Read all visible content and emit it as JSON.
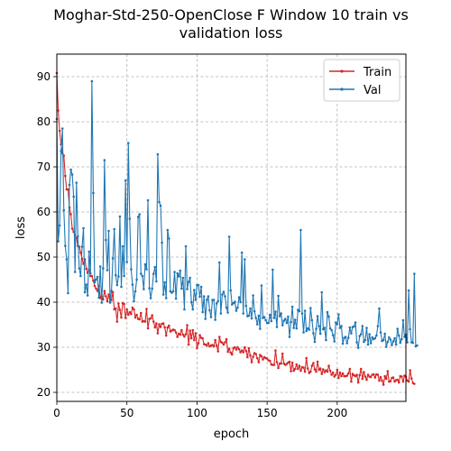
{
  "chart_data": {
    "type": "line",
    "title_line1": "Moghar-Std-250-OpenClose F Window 10 train vs",
    "title_line2": "validation loss",
    "xlabel": "epoch",
    "ylabel": "loss",
    "xlim": [
      0,
      249
    ],
    "ylim": [
      18,
      95
    ],
    "xticks": [
      0,
      50,
      100,
      150,
      200
    ],
    "yticks": [
      20,
      30,
      40,
      50,
      60,
      70,
      80,
      90
    ],
    "grid": true,
    "grid_style": "dashed",
    "legend_position": "top-right",
    "series": [
      {
        "name": "Train",
        "color": "#d62728",
        "x_start": 0,
        "x_step": 1,
        "y": [
          90.8,
          82.5,
          78.0,
          75.0,
          73.0,
          72.5,
          68.0,
          65.0,
          65.0,
          61.0,
          59.5,
          56.3,
          55.6,
          54.8,
          54.2,
          52.5,
          52.3,
          51.0,
          49.6,
          48.5,
          49.5,
          47.4,
          46.5,
          47.2,
          45.8,
          45.8,
          44.8,
          43.6,
          43.0,
          42.5,
          43.6,
          40.9,
          41.3,
          40.6,
          42.5,
          41.3,
          40.2,
          41.7,
          40.0,
          40.5,
          42.2,
          38.4,
          38.6,
          35.7,
          39.7,
          38.3,
          36.6,
          39.8,
          39.6,
          36.5,
          38.4,
          37.2,
          37.8,
          37.4,
          38.8,
          38.4,
          36.6,
          37.2,
          36.3,
          36.2,
          37.6,
          35.7,
          35.8,
          35.7,
          38.5,
          34.2,
          36.3,
          36.4,
          37.1,
          35.7,
          34.4,
          35.3,
          33.1,
          35.1,
          34.5,
          35.2,
          35.3,
          34.4,
          32.6,
          34.4,
          34.8,
          33.5,
          33.7,
          33.9,
          33.8,
          33.3,
          32.3,
          33.0,
          32.8,
          33.8,
          32.8,
          32.4,
          32.9,
          34.9,
          30.6,
          33.7,
          32.0,
          33.8,
          31.6,
          33.1,
          29.8,
          30.9,
          32.7,
          32.1,
          32.0,
          30.7,
          30.6,
          30.4,
          30.9,
          30.2,
          30.4,
          30.5,
          30.2,
          31.6,
          30.4,
          29.1,
          32.3,
          31.2,
          31.0,
          30.6,
          31.1,
          31.8,
          29.0,
          29.7,
          28.8,
          28.4,
          29.8,
          30.0,
          29.5,
          30.0,
          29.6,
          28.9,
          29.3,
          28.9,
          30.0,
          29.2,
          27.8,
          29.8,
          28.2,
          26.7,
          27.9,
          28.7,
          28.5,
          27.6,
          26.7,
          28.3,
          28.0,
          27.3,
          27.8,
          27.6,
          27.5,
          27.1,
          27.0,
          26.2,
          26.1,
          26.1,
          29.3,
          26.7,
          25.4,
          26.4,
          26.4,
          28.6,
          26.4,
          26.1,
          26.3,
          26.6,
          26.8,
          24.7,
          26.6,
          24.8,
          25.2,
          26.2,
          25.2,
          25.9,
          24.8,
          25.6,
          25.5,
          24.6,
          27.6,
          25.3,
          24.3,
          24.6,
          25.9,
          26.5,
          25.1,
          24.6,
          26.8,
          25.0,
          25.3,
          24.1,
          25.1,
          24.5,
          24.9,
          24.6,
          25.9,
          24.8,
          23.9,
          24.4,
          23.5,
          23.9,
          25.0,
          23.2,
          24.4,
          23.6,
          24.2,
          23.6,
          23.6,
          23.7,
          24.2,
          25.2,
          22.4,
          24.1,
          23.8,
          23.6,
          23.9,
          22.2,
          23.8,
          25.2,
          23.0,
          24.5,
          23.5,
          22.8,
          23.9,
          23.5,
          23.4,
          23.9,
          24.0,
          23.3,
          24.0,
          23.9,
          22.6,
          23.4,
          22.6,
          21.7,
          23.6,
          23.0,
          24.7,
          22.4,
          22.5,
          23.2,
          23.3,
          22.4,
          22.7,
          22.8,
          22.2,
          23.6,
          23.5,
          22.4,
          23.7,
          23.5,
          22.6,
          22.4,
          24.9,
          23.1,
          22.1,
          21.9
        ]
      },
      {
        "name": "Val",
        "color": "#1f77b4",
        "x_start": 0,
        "x_step": 1,
        "y": [
          80.6,
          53.5,
          57.0,
          73.5,
          78.5,
          60.4,
          52.5,
          49.5,
          42.0,
          66.0,
          69.4,
          68.3,
          63.4,
          46.7,
          66.5,
          54.6,
          47.5,
          45.8,
          52.3,
          56.4,
          42.2,
          43.9,
          41.5,
          51.2,
          46.4,
          89.0,
          64.2,
          44.4,
          45.0,
          45.6,
          41.0,
          47.9,
          39.9,
          47.5,
          71.5,
          53.8,
          47.1,
          55.8,
          39.9,
          42.5,
          49.7,
          56.2,
          46.0,
          43.8,
          45.7,
          59.0,
          43.4,
          52.4,
          45.8,
          67.0,
          48.9,
          75.3,
          58.5,
          47.3,
          43.9,
          40.2,
          42.4,
          45.0,
          58.9,
          59.5,
          46.3,
          45.8,
          42.9,
          48.4,
          47.3,
          62.6,
          43.1,
          40.9,
          43.0,
          46.3,
          47.8,
          44.6,
          72.8,
          62.2,
          61.4,
          53.2,
          41.7,
          44.4,
          40.9,
          56.0,
          54.1,
          42.4,
          42.1,
          42.4,
          46.7,
          40.8,
          46.4,
          45.7,
          47.0,
          43.0,
          45.4,
          38.4,
          52.4,
          42.9,
          44.5,
          45.4,
          40.0,
          38.4,
          42.7,
          40.5,
          43.8,
          43.8,
          41.2,
          43.4,
          37.8,
          41.3,
          36.3,
          40.5,
          41.3,
          38.2,
          36.7,
          40.5,
          40.5,
          36.1,
          39.7,
          40.2,
          48.8,
          37.5,
          41.7,
          42.3,
          41.3,
          38.8,
          37.7,
          54.5,
          42.6,
          39.5,
          39.8,
          40.1,
          38.1,
          38.8,
          41.1,
          40.0,
          51.0,
          37.5,
          49.5,
          39.2,
          36.9,
          37.0,
          38.6,
          36.4,
          41.5,
          38.0,
          36.5,
          35.1,
          37.0,
          34.1,
          43.7,
          36.5,
          36.7,
          36.0,
          35.4,
          35.4,
          37.2,
          35.8,
          47.2,
          36.5,
          37.9,
          34.5,
          41.4,
          36.9,
          37.5,
          34.9,
          35.9,
          36.3,
          35.4,
          36.8,
          32.3,
          35.6,
          39.0,
          34.3,
          36.1,
          34.2,
          38.3,
          38.0,
          56.0,
          37.5,
          33.3,
          38.1,
          33.6,
          34.2,
          33.9,
          38.7,
          36.0,
          33.1,
          31.2,
          34.1,
          36.9,
          34.7,
          33.0,
          42.2,
          34.0,
          34.3,
          31.6,
          37.8,
          36.8,
          34.2,
          33.8,
          32.7,
          31.3,
          35.5,
          35.1,
          37.3,
          34.3,
          34.7,
          30.8,
          32.1,
          32.3,
          30.9,
          32.1,
          34.4,
          33.1,
          34.5,
          34.6,
          35.5,
          31.1,
          29.9,
          32.5,
          32.9,
          34.7,
          31.2,
          31.6,
          34.3,
          30.6,
          32.9,
          30.9,
          32.2,
          31.8,
          32.0,
          32.6,
          34.7,
          38.6,
          33.3,
          31.4,
          31.6,
          33.0,
          30.1,
          31.2,
          32.2,
          31.7,
          30.5,
          31.3,
          32.0,
          30.6,
          34.1,
          32.6,
          31.0,
          31.8,
          36.0,
          32.3,
          32.8,
          31.1,
          42.6,
          34.0,
          31.1,
          31.0,
          46.3,
          30.2,
          30.4
        ]
      }
    ]
  }
}
